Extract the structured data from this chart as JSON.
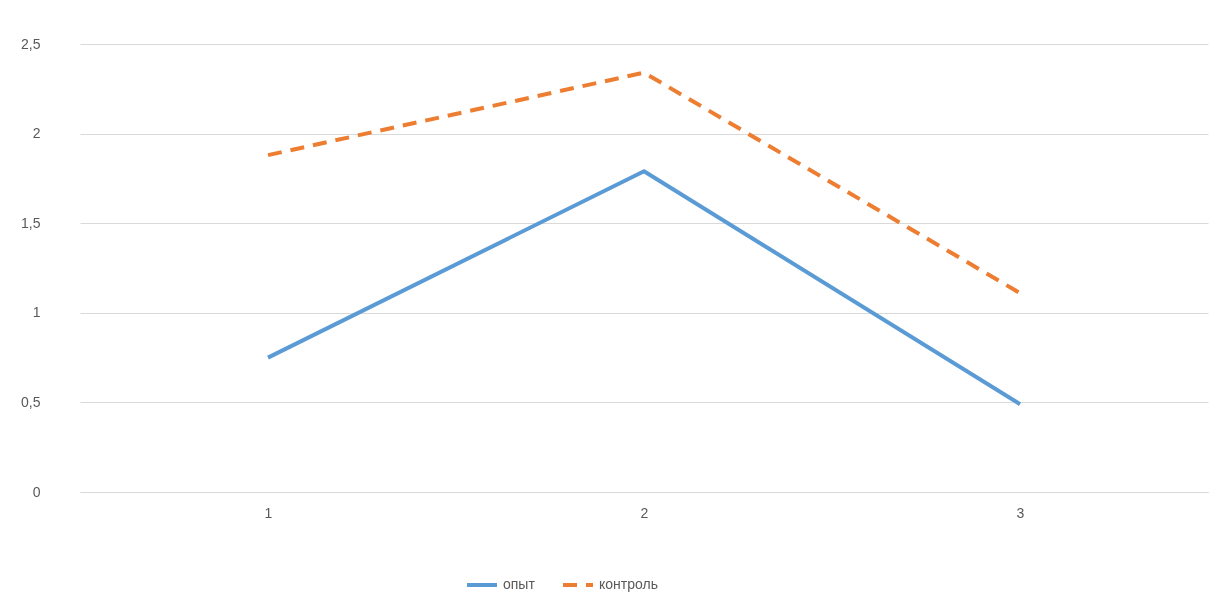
{
  "chart_data": {
    "type": "line",
    "categories": [
      "1",
      "2",
      "3"
    ],
    "series": [
      {
        "name": "опыт",
        "color": "#5b9bd5",
        "line_style": "solid",
        "values": [
          0.75,
          1.79,
          0.49
        ]
      },
      {
        "name": "контроль",
        "color": "#ed7d31",
        "line_style": "dashed",
        "values": [
          1.88,
          2.34,
          1.11
        ]
      }
    ],
    "ylim": [
      0,
      2.5
    ],
    "yticks": [
      0,
      {
        "value": 0.5,
        "label": "0,5"
      },
      1,
      {
        "value": 1.5,
        "label": "1,5"
      },
      2,
      {
        "value": 2.5,
        "label": "2,5"
      }
    ],
    "grid": "y",
    "legend": "bottom",
    "marker": "none"
  }
}
